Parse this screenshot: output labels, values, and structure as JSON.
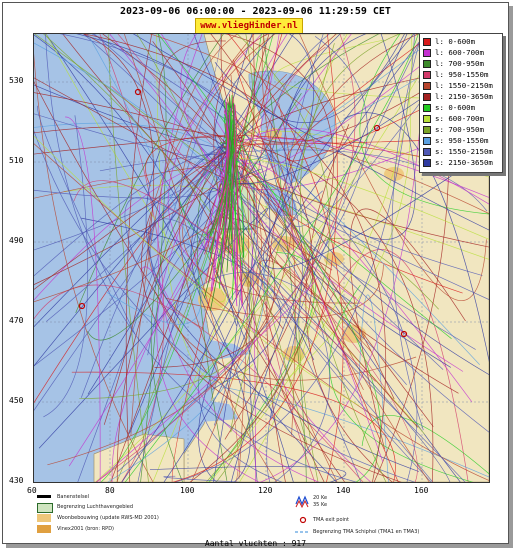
{
  "header": {
    "title": "2023-09-06 06:00:00 - 2023-09-06 11:29:59 CET"
  },
  "brand": {
    "label": "www.vliegHinder.nl"
  },
  "axes": {
    "y_ticks": [
      "530",
      "510",
      "490",
      "470",
      "450",
      "430"
    ],
    "x_ticks": [
      "60",
      "80",
      "100",
      "120",
      "140",
      "160"
    ]
  },
  "legend": {
    "items": [
      {
        "label": "l: 0-600m",
        "color": "#d81b1b"
      },
      {
        "label": "l: 600-700m",
        "color": "#c430d0"
      },
      {
        "label": "l: 700-950m",
        "color": "#3c8a2a"
      },
      {
        "label": "l: 950-1550m",
        "color": "#d23a6a"
      },
      {
        "label": "l: 1550-2150m",
        "color": "#b8452e"
      },
      {
        "label": "l: 2150-3650m",
        "color": "#a32020"
      },
      {
        "label": "s: 0-600m",
        "color": "#22cc22"
      },
      {
        "label": "s: 600-700m",
        "color": "#b8e03a"
      },
      {
        "label": "s: 700-950m",
        "color": "#7ba428"
      },
      {
        "label": "s: 950-1550m",
        "color": "#5aa0e0"
      },
      {
        "label": "s: 1550-2150m",
        "color": "#4f58b4"
      },
      {
        "label": "s: 2150-3650m",
        "color": "#2f3aa0"
      }
    ]
  },
  "footer": {
    "banenstelsel": "Banenstelsel",
    "luchthaven": "Begrenzing Luchthavengebied",
    "woonbebouwing": "Woonbebouwing (update RWS-MD 2001)",
    "vinex": "Vinex2001 (bron: RPD)",
    "noise_20": "20 Ke",
    "noise_35": "35 Ke",
    "tma_exit": "TMA exit point",
    "tma_border": "Begrenzing TMA Schiphol  (TMA1 en TMA3)",
    "count": "Aantal vluchten : 917"
  },
  "colors": {
    "sea": "#a6c3e6",
    "land": "#f1e6c0",
    "urban": "#eec77a"
  }
}
